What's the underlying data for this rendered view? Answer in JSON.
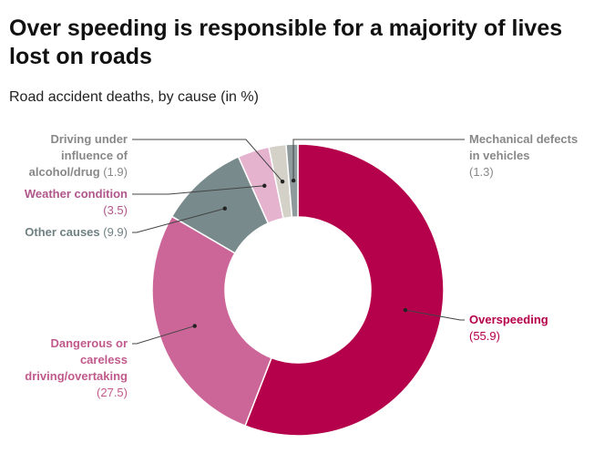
{
  "chart_data": {
    "type": "donut",
    "title": "Over speeding is responsible for a majority of lives lost on roads",
    "subtitle": "Road accident deaths, by cause (in %)",
    "categories": [
      "Overspeeding",
      "Dangerous or careless driving/overtaking",
      "Other causes",
      "Weather condition",
      "Driving under influence of alcohol/drug",
      "Mechanical defects in vehicles"
    ],
    "values": [
      55.9,
      27.5,
      9.9,
      3.5,
      1.9,
      1.3
    ],
    "value_labels": [
      "(55.9)",
      "(27.5)",
      "(9.9)",
      "(3.5)",
      "(1.9)",
      "(1.3)"
    ],
    "colors": [
      "#b5004b",
      "#cc6699",
      "#788a8c",
      "#e6b3cf",
      "#d3d1c8",
      "#8e9a9c"
    ],
    "label_colors": [
      "#b5004b",
      "#c15a8c",
      "#6f8082",
      "#b0568b",
      "#888888",
      "#888888"
    ]
  }
}
